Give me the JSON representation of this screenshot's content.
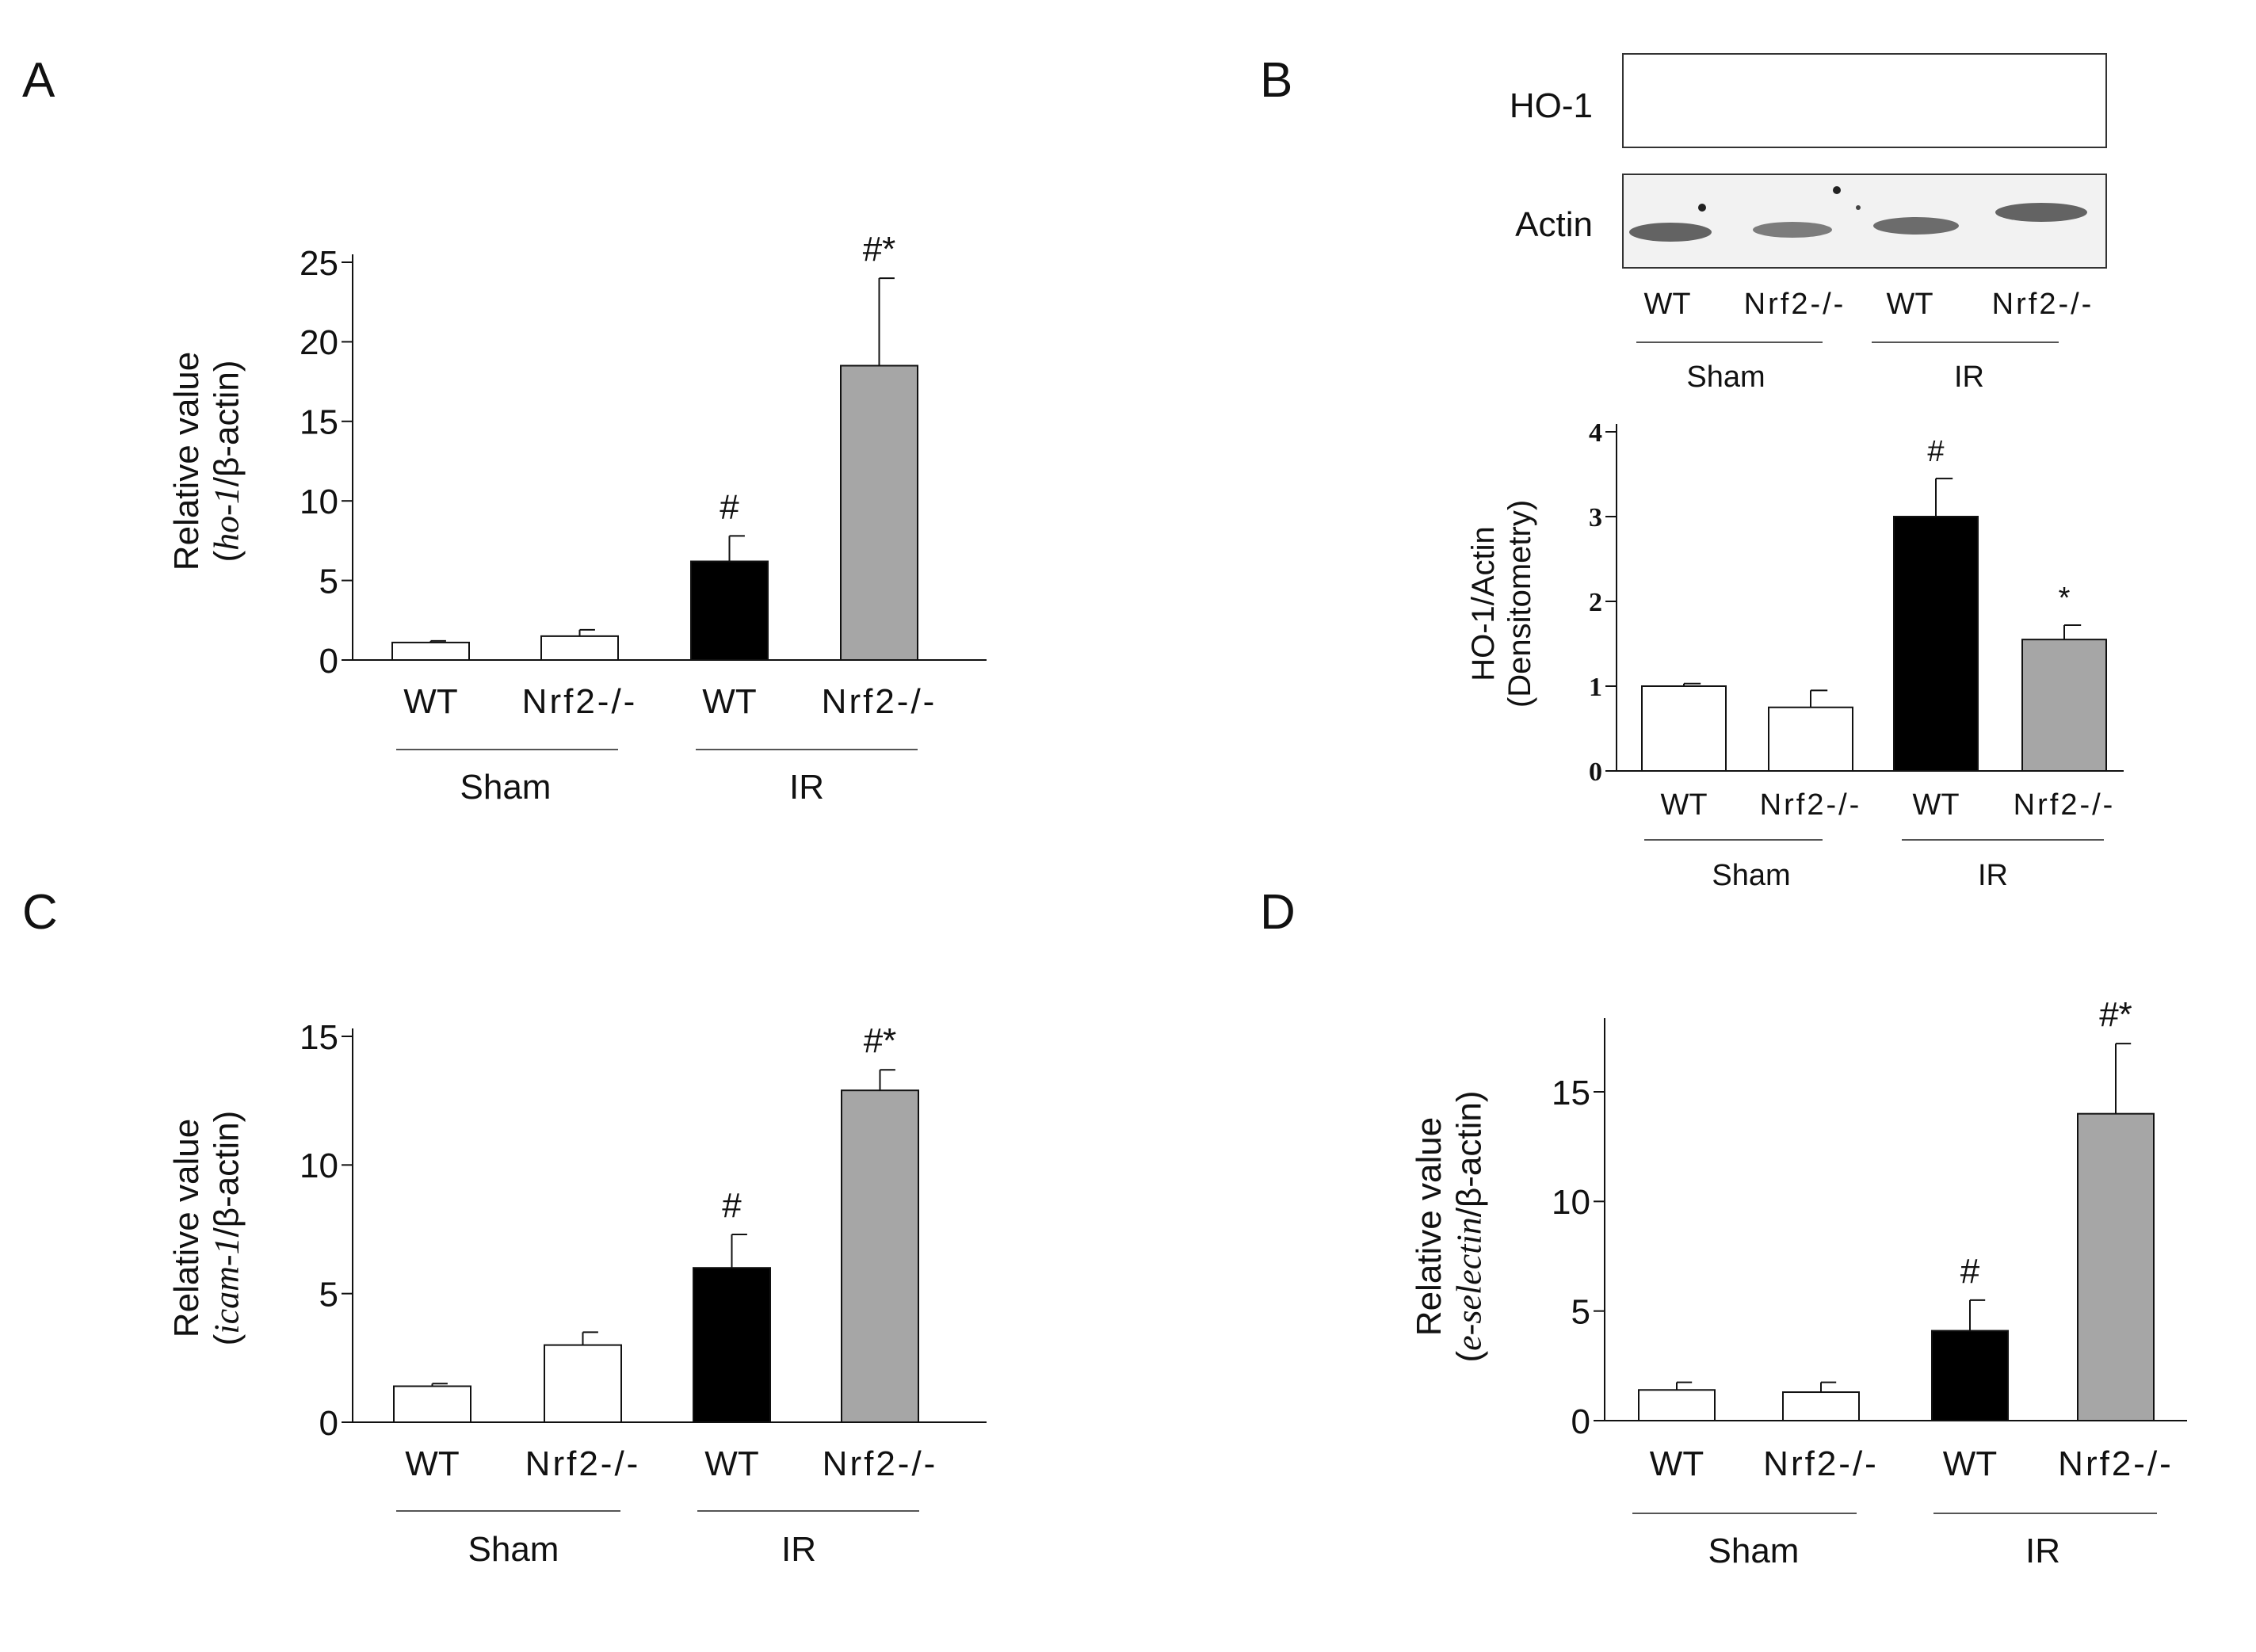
{
  "figure": {
    "colors": {
      "sham_bar": "#ffffff",
      "ir_wt_bar": "#000000",
      "ir_ko_bar": "#a6a6a6",
      "axis": "#111111",
      "blot_bg": "#f2f2f2",
      "blot_band": "#4a4a4a"
    }
  },
  "blot": {
    "panel_label": "B",
    "rows": [
      {
        "label": "HO-1",
        "has_bands": false
      },
      {
        "label": "Actin",
        "has_bands": true
      }
    ],
    "lanes": [
      "WT",
      "Nrf2-/-",
      "WT",
      "Nrf2-/-"
    ],
    "groups": [
      "Sham",
      "IR"
    ]
  },
  "chart_data": [
    {
      "panel_label": "A",
      "type": "bar",
      "categories": [
        "WT",
        "Nrf2-/-",
        "WT",
        "Nrf2-/-"
      ],
      "groups": [
        "Sham",
        "IR"
      ],
      "values": [
        1.1,
        1.5,
        6.2,
        18.5
      ],
      "errors": [
        0.1,
        0.4,
        1.6,
        5.5
      ],
      "annotations": [
        "",
        "",
        "#",
        "#*"
      ],
      "ylabel_line1": "Relative value",
      "ylabel_line2_prefix": "(",
      "ylabel_line2_gene": "ho-1",
      "ylabel_line2_suffix": "/β-actin)",
      "ylim": [
        0,
        25
      ],
      "yticks": [
        "0",
        "5",
        "10",
        "15",
        "20",
        "25"
      ]
    },
    {
      "panel_label": "",
      "type": "bar",
      "categories": [
        "WT",
        "Nrf2-/-",
        "WT",
        "Nrf2-/-"
      ],
      "groups": [
        "Sham",
        "IR"
      ],
      "values": [
        1.0,
        0.75,
        3.0,
        1.55
      ],
      "errors": [
        0.03,
        0.2,
        0.45,
        0.17
      ],
      "annotations": [
        "",
        "",
        "#",
        "*"
      ],
      "ylabel_line1": "HO-1/Actin",
      "ylabel_line2": "(Densitometry)",
      "ylim": [
        0,
        4
      ],
      "yticks": [
        "0",
        "1",
        "2",
        "3",
        "4"
      ]
    },
    {
      "panel_label": "C",
      "type": "bar",
      "categories": [
        "WT",
        "Nrf2-/-",
        "WT",
        "Nrf2-/-"
      ],
      "groups": [
        "Sham",
        "IR"
      ],
      "values": [
        1.4,
        3.0,
        6.0,
        12.9
      ],
      "errors": [
        0.1,
        0.5,
        1.3,
        0.8
      ],
      "annotations": [
        "",
        "",
        "#",
        "#*"
      ],
      "ylabel_line1": "Relative value",
      "ylabel_line2_prefix": "(",
      "ylabel_line2_gene": "icam-1",
      "ylabel_line2_suffix": "/β-actin)",
      "ylim": [
        0,
        15
      ],
      "yticks": [
        "0",
        "5",
        "10",
        "15"
      ]
    },
    {
      "panel_label": "D",
      "type": "bar",
      "categories": [
        "WT",
        "Nrf2-/-",
        "WT",
        "Nrf2-/-"
      ],
      "groups": [
        "Sham",
        "IR"
      ],
      "values": [
        1.4,
        1.3,
        4.1,
        14.0
      ],
      "errors": [
        0.35,
        0.45,
        1.4,
        3.2
      ],
      "annotations": [
        "",
        "",
        "#",
        "#*"
      ],
      "ylabel_line1": "Relative value",
      "ylabel_line2_prefix": "(",
      "ylabel_line2_gene": "e-selectin",
      "ylabel_line2_suffix": "/β-actin)",
      "ylim": [
        0,
        18
      ],
      "yticks": [
        "0",
        "5",
        "10",
        "15"
      ]
    }
  ]
}
